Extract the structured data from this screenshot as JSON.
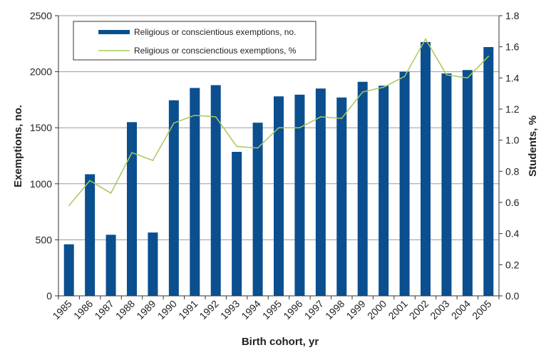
{
  "chart_data": {
    "type": "bar+line",
    "title": "",
    "categories": [
      "1985",
      "1986",
      "1987",
      "1988",
      "1989",
      "1990",
      "1991",
      "1992",
      "1993",
      "1994",
      "1995",
      "1996",
      "1997",
      "1998",
      "1999",
      "2000",
      "2001",
      "2002",
      "2003",
      "2004",
      "2005"
    ],
    "series": [
      {
        "name": "Religious or conscientious exemptions, no.",
        "type": "bar",
        "axis": "left",
        "color": "#0b4f8f",
        "values": [
          460,
          1085,
          545,
          1550,
          565,
          1745,
          1855,
          1880,
          1285,
          1545,
          1780,
          1795,
          1850,
          1770,
          1910,
          1875,
          2000,
          2265,
          1985,
          2015,
          2220
        ]
      },
      {
        "name": "Religious or conscienctious exemptions, %",
        "type": "line",
        "axis": "right",
        "color": "#a9c85a",
        "values": [
          0.58,
          0.74,
          0.66,
          0.92,
          0.87,
          1.11,
          1.16,
          1.15,
          0.96,
          0.95,
          1.08,
          1.08,
          1.15,
          1.14,
          1.31,
          1.34,
          1.41,
          1.65,
          1.42,
          1.4,
          1.54
        ]
      }
    ],
    "xlabel": "Birth cohort, yr",
    "ylabel": "Exemptions, no.",
    "y2label": "Students, %",
    "ylim": [
      0,
      2500
    ],
    "y2lim": [
      0,
      1.8
    ],
    "yticks": [
      0,
      500,
      1000,
      1500,
      2000,
      2500
    ],
    "y2ticks": [
      "0.0",
      "0.2",
      "0.4",
      "0.6",
      "0.8",
      "1.0",
      "1.2",
      "1.4",
      "1.6",
      "1.8"
    ],
    "grid": true,
    "legend_position": "top-left"
  }
}
